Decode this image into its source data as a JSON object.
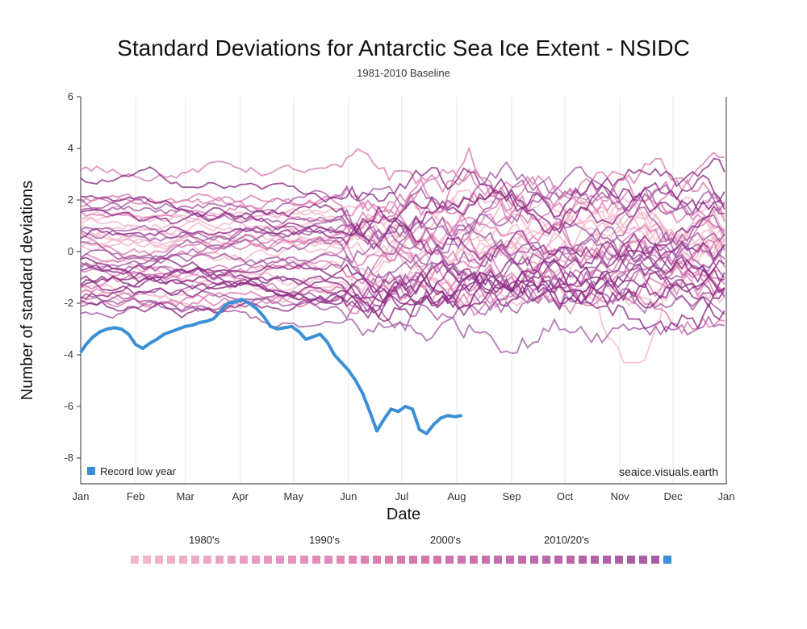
{
  "chart_data": {
    "type": "line",
    "title": "Standard Deviations for Antarctic Sea Ice Extent - NSIDC",
    "subtitle": "1981-2010 Baseline",
    "xlabel": "Date",
    "ylabel": "Number of standard deviations",
    "x_ticks": [
      "Jan",
      "Feb",
      "Mar",
      "Apr",
      "May",
      "Jun",
      "Jul",
      "Aug",
      "Sep",
      "Oct",
      "Nov",
      "Dec",
      "Jan"
    ],
    "ylim": [
      -9,
      6
    ],
    "y_ticks": [
      6,
      4,
      2,
      0,
      -2,
      -4,
      -6,
      -8
    ],
    "grid": "vertical",
    "legend": {
      "label": "Record low year",
      "color": "#3a8fd6",
      "placement": "bottom-left"
    },
    "source": "seaice.visuals.earth",
    "decade_labels": [
      "1980's",
      "1990's",
      "2000's",
      "2010/20's"
    ],
    "year_swatch_count": 45,
    "colors": {
      "light": "#f4b6cc",
      "mid": "#d97ab0",
      "dark": "#a45aa4",
      "deep": "#8c2a84",
      "record": "#3a8fd6"
    },
    "record_series": {
      "name": "Record low year",
      "x_day": [
        1,
        4,
        8,
        12,
        16,
        20,
        24,
        28,
        32,
        36,
        40,
        44,
        48,
        52,
        56,
        60,
        64,
        68,
        72,
        76,
        80,
        84,
        88,
        92,
        96,
        100,
        104,
        108,
        112,
        116,
        120,
        124,
        128,
        132,
        136,
        140,
        144,
        148,
        152,
        156,
        160,
        164,
        168,
        172,
        176,
        180,
        184,
        188,
        192,
        196,
        200,
        204,
        208,
        212,
        216
      ],
      "values": [
        -3.9,
        -3.6,
        -3.3,
        -3.1,
        -3.0,
        -2.95,
        -3.0,
        -3.2,
        -3.6,
        -3.75,
        -3.55,
        -3.4,
        -3.2,
        -3.1,
        -3.0,
        -2.9,
        -2.85,
        -2.75,
        -2.7,
        -2.6,
        -2.3,
        -2.0,
        -1.95,
        -1.85,
        -2.0,
        -2.2,
        -2.5,
        -2.9,
        -3.0,
        -2.95,
        -2.9,
        -3.1,
        -3.4,
        -3.3,
        -3.2,
        -3.5,
        -4.0,
        -4.3,
        -4.6,
        -5.0,
        -5.5,
        -6.2,
        -6.95,
        -6.5,
        -6.1,
        -6.2,
        -6.0,
        -6.1,
        -6.9,
        -7.05,
        -6.7,
        -6.45,
        -6.35,
        -6.4,
        -6.35
      ]
    }
  }
}
